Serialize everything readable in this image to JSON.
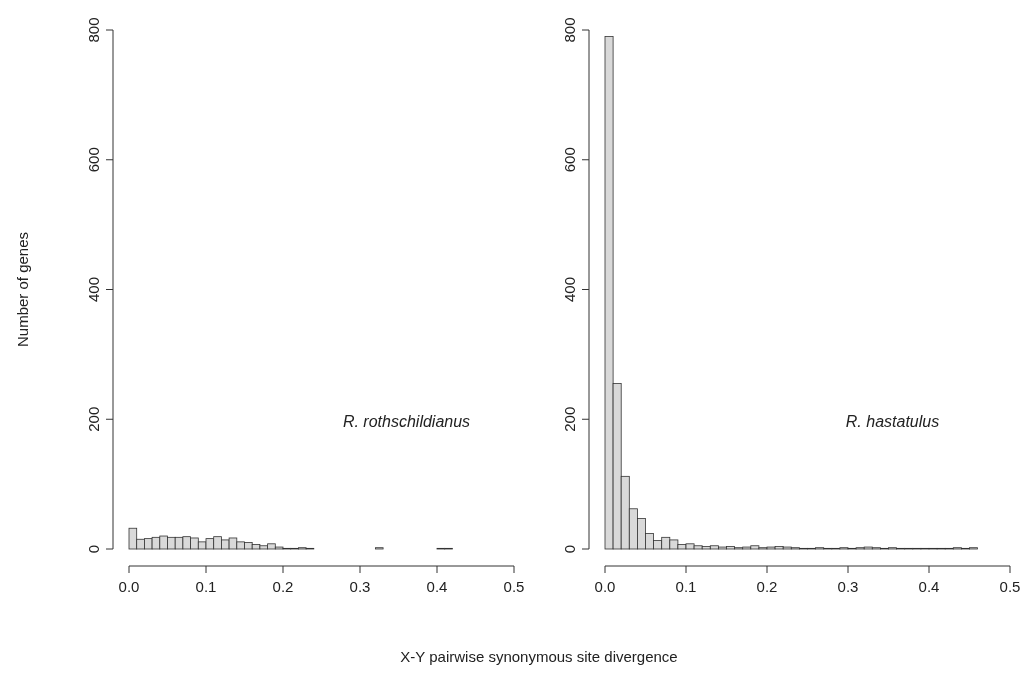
{
  "chart_data": [
    {
      "type": "histogram",
      "ylabel": "Number of genes",
      "xlabel": "X-Y pairwise synonymous site divergence",
      "annotations": [
        "R. rothschildianus"
      ],
      "color": "#d9d9d9",
      "bins": [
        0,
        0.01,
        0.02,
        0.03,
        0.04,
        0.05,
        0.06,
        0.07,
        0.08,
        0.09,
        0.1,
        0.11,
        0.12,
        0.13,
        0.14,
        0.15,
        0.16,
        0.17,
        0.18,
        0.19,
        0.2,
        0.21,
        0.22,
        0.23,
        0.24,
        0.25,
        0.26,
        0.27,
        0.28,
        0.29,
        0.3,
        0.31,
        0.32,
        0.33,
        0.34,
        0.35,
        0.36,
        0.37,
        0.38,
        0.39,
        0.4,
        0.41,
        0.42
      ],
      "values": [
        32,
        15,
        16,
        18,
        20,
        18,
        18,
        19,
        17,
        11,
        16,
        19,
        14,
        17,
        11,
        10,
        7,
        5,
        8,
        3,
        1,
        1,
        2,
        1,
        0,
        0,
        0,
        0,
        0,
        0,
        0,
        0,
        2,
        0,
        0,
        0,
        0,
        0,
        0,
        0,
        1,
        1
      ],
      "xlim": [
        0,
        0.5
      ],
      "xticks": [
        {
          "value": 0,
          "label": "0.0"
        },
        0.1,
        0.2,
        0.3,
        0.4,
        0.5
      ],
      "ylim": [
        0,
        800
      ],
      "yticks": [
        0,
        200,
        400,
        600,
        800
      ],
      "grid": false
    },
    {
      "type": "histogram",
      "annotations": [
        "R. hastatulus"
      ],
      "color": "#d9d9d9",
      "bins": [
        0,
        0.01,
        0.02,
        0.03,
        0.04,
        0.05,
        0.06,
        0.07,
        0.08,
        0.09,
        0.1,
        0.11,
        0.12,
        0.13,
        0.14,
        0.15,
        0.16,
        0.17,
        0.18,
        0.19,
        0.2,
        0.21,
        0.22,
        0.23,
        0.24,
        0.25,
        0.26,
        0.27,
        0.28,
        0.29,
        0.3,
        0.31,
        0.32,
        0.33,
        0.34,
        0.35,
        0.36,
        0.37,
        0.38,
        0.39,
        0.4,
        0.41,
        0.42,
        0.43,
        0.44,
        0.45,
        0.46
      ],
      "values": [
        790,
        255,
        112,
        62,
        47,
        24,
        13,
        18,
        14,
        7,
        8,
        5,
        4,
        5,
        3,
        4,
        2,
        3,
        5,
        2,
        3,
        4,
        3,
        2,
        1,
        1,
        2,
        1,
        1,
        2,
        1,
        2,
        3,
        2,
        1,
        2,
        1,
        1,
        1,
        1,
        1,
        1,
        1,
        2,
        1,
        2
      ],
      "xlim": [
        0,
        0.5
      ],
      "xticks": [
        {
          "value": 0,
          "label": "0.0"
        },
        0.1,
        0.2,
        0.3,
        0.4,
        0.5
      ],
      "ylim": [
        0,
        800
      ],
      "yticks": [
        0,
        200,
        400,
        600,
        800
      ],
      "grid": false
    }
  ]
}
